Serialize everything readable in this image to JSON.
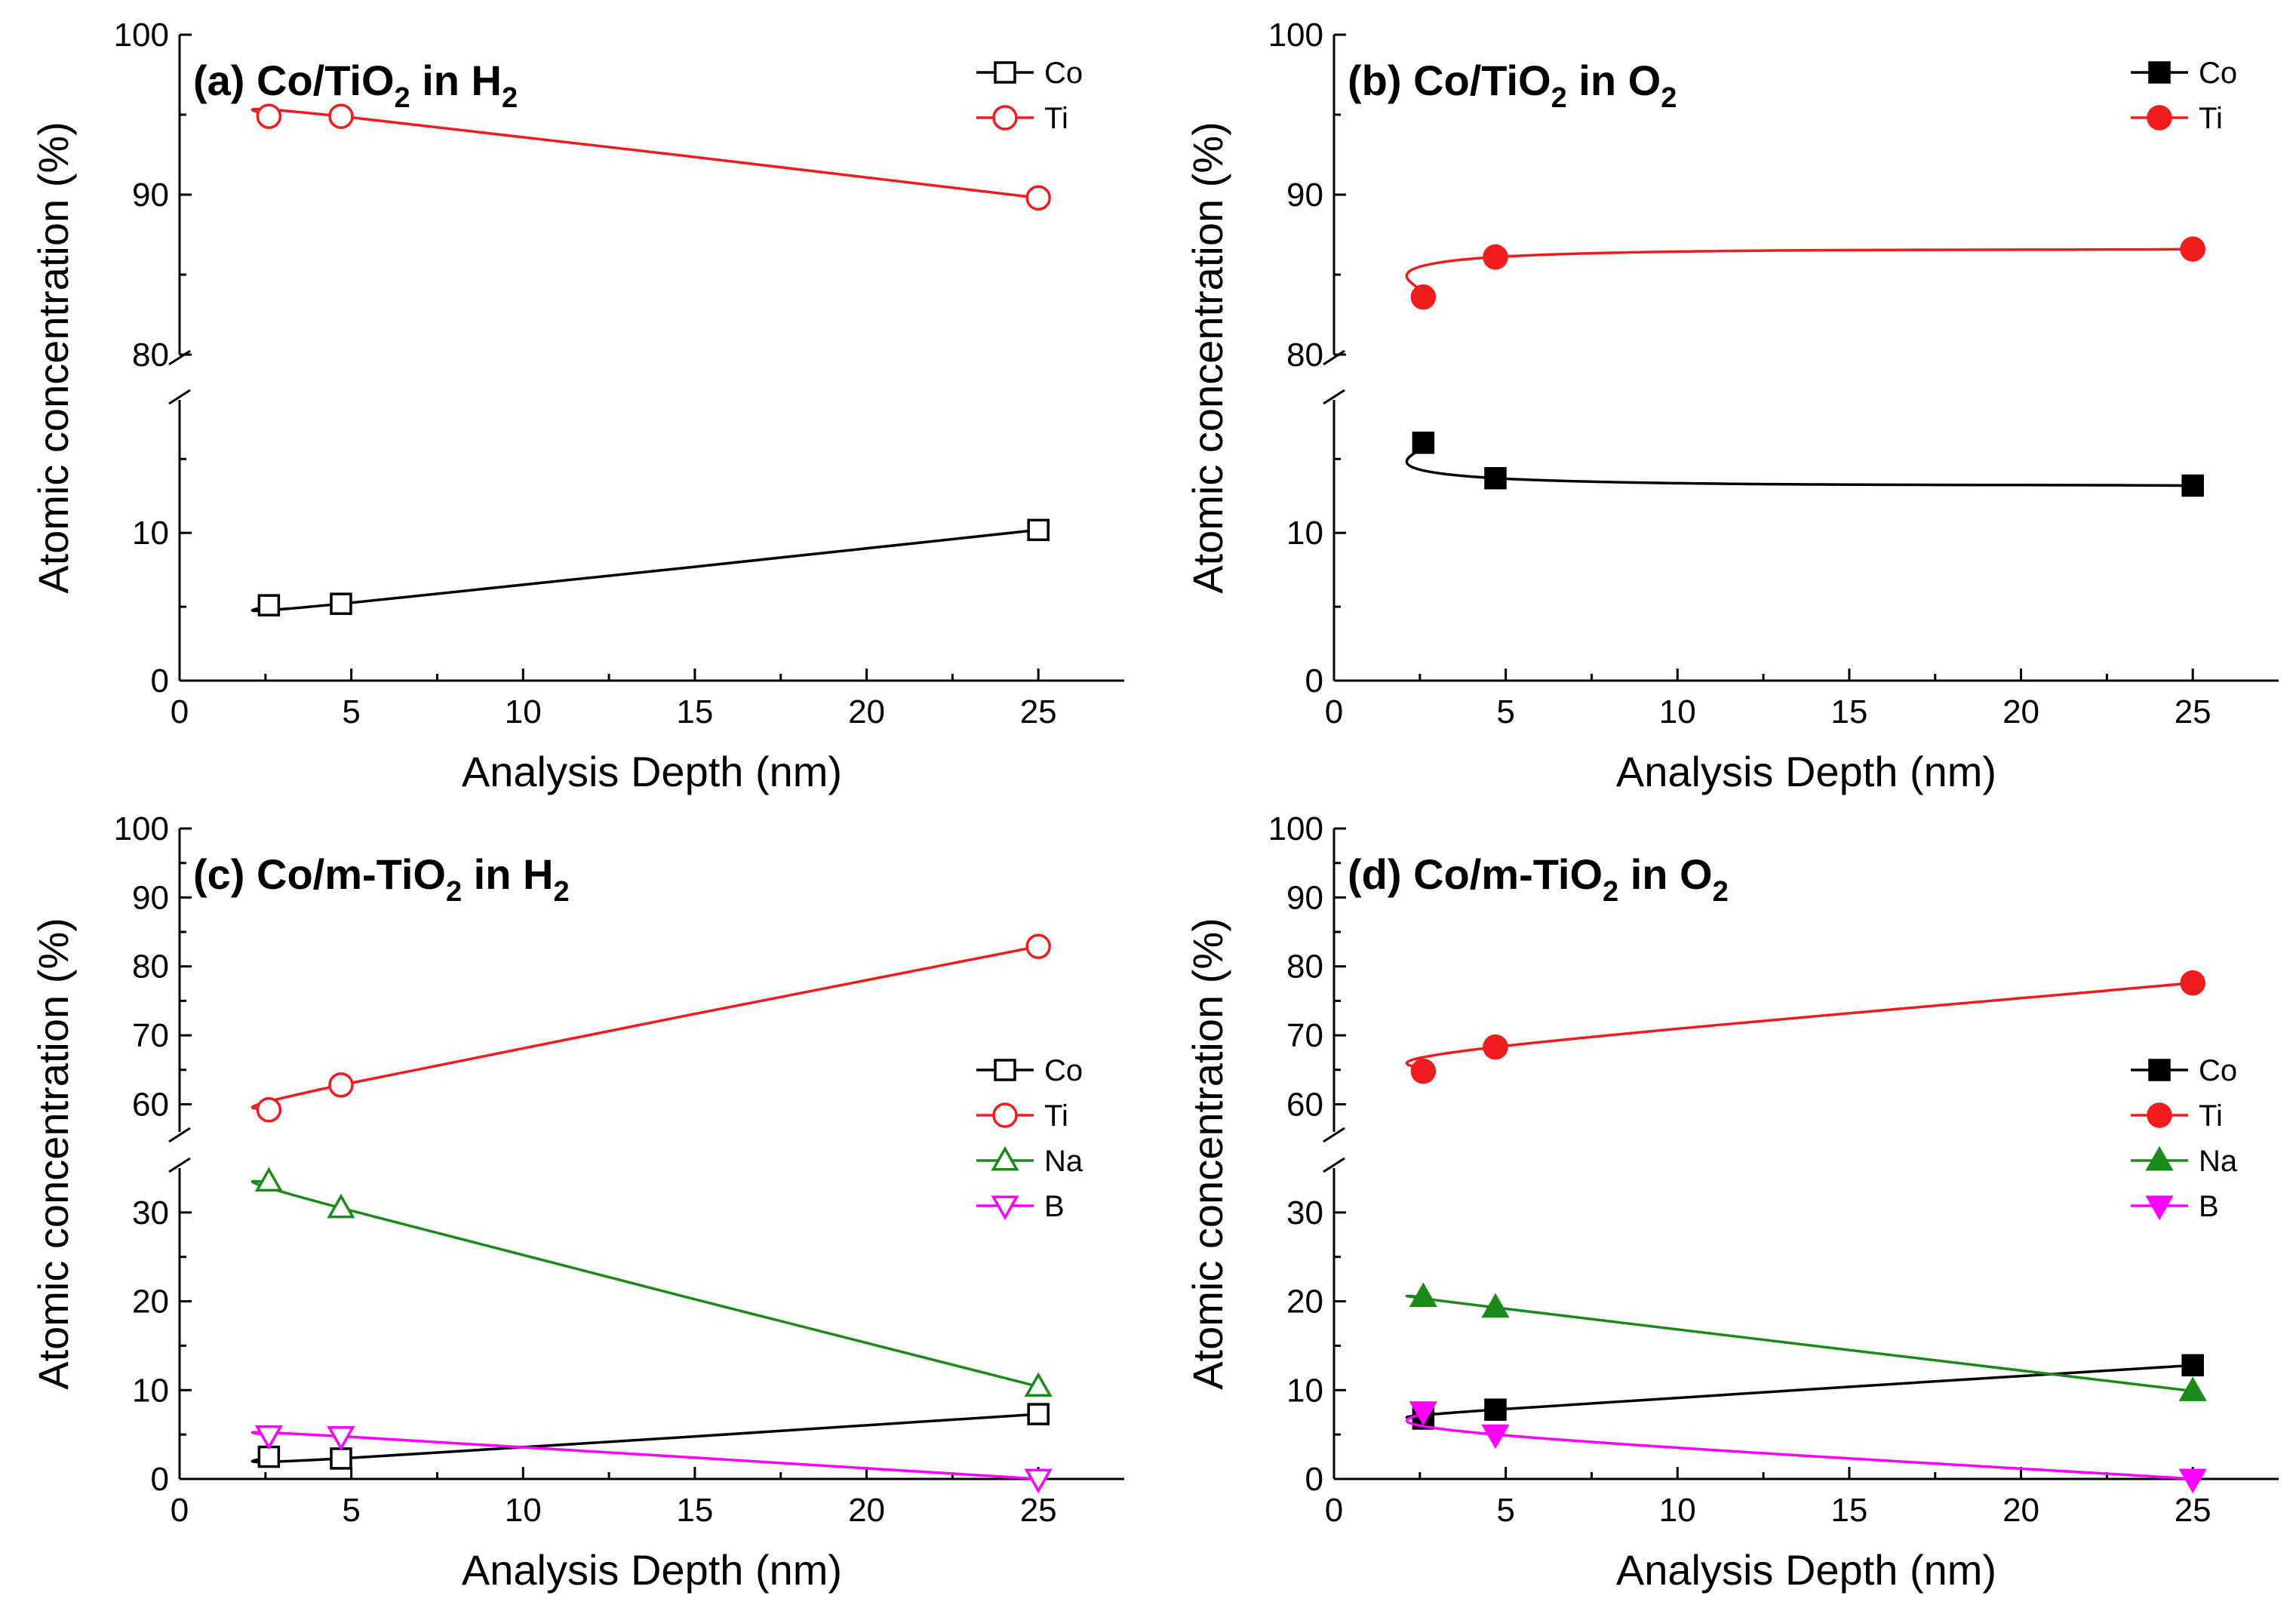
{
  "chart_data": [
    {
      "type": "line",
      "panel_title": "(a) Co/TiO₂ in H₂",
      "title_main": "(a) Co/TiO",
      "title_sub": "2",
      "title_mid": " in H",
      "title_sub2": "2",
      "xlabel": "Analysis Depth (nm)",
      "ylabel": "Atomic concentration (%)",
      "xlim": [
        0,
        27.5
      ],
      "x_ticks": [
        0,
        5,
        10,
        15,
        20,
        25
      ],
      "x_tick_labels": [
        "0",
        "5",
        "10",
        "15",
        "20",
        "25"
      ],
      "y_break": true,
      "y_lower": [
        0,
        19
      ],
      "y_upper": [
        80,
        100
      ],
      "y_ticks_lower": [
        0,
        10
      ],
      "y_tick_labels_lower": [
        "0",
        "10"
      ],
      "y_ticks_upper": [
        80,
        90,
        100
      ],
      "y_tick_labels_upper": [
        "80",
        "90",
        "100"
      ],
      "legend_position": "top-right",
      "series": [
        {
          "name": "Co",
          "color": "#000000",
          "marker": "square",
          "filled": false,
          "x": [
            2.6,
            4.7,
            25.0
          ],
          "values": [
            5.1,
            5.2,
            10.2
          ]
        },
        {
          "name": "Ti",
          "color": "#ee1c1c",
          "marker": "circle",
          "filled": false,
          "x": [
            2.6,
            4.7,
            25.0
          ],
          "values": [
            94.9,
            94.9,
            89.8
          ]
        }
      ]
    },
    {
      "type": "line",
      "panel_title": "(b) Co/TiO₂ in O₂",
      "title_main": "(b) Co/TiO",
      "title_sub": "2",
      "title_mid": " in O",
      "title_sub2": "2",
      "xlabel": "Analysis Depth (nm)",
      "ylabel": "Atomic concentration (%)",
      "xlim": [
        0,
        27.5
      ],
      "x_ticks": [
        0,
        5,
        10,
        15,
        20,
        25
      ],
      "x_tick_labels": [
        "0",
        "5",
        "10",
        "15",
        "20",
        "25"
      ],
      "y_break": true,
      "y_lower": [
        0,
        19
      ],
      "y_upper": [
        80,
        100
      ],
      "y_ticks_lower": [
        0,
        10
      ],
      "y_tick_labels_lower": [
        "0",
        "10"
      ],
      "y_ticks_upper": [
        80,
        90,
        100
      ],
      "y_tick_labels_upper": [
        "80",
        "90",
        "100"
      ],
      "legend_position": "top-right",
      "series": [
        {
          "name": "Co",
          "color": "#000000",
          "marker": "square",
          "filled": true,
          "x": [
            2.6,
            4.7,
            25.0
          ],
          "values": [
            16.1,
            13.7,
            13.2
          ]
        },
        {
          "name": "Ti",
          "color": "#ee1c1c",
          "marker": "circle",
          "filled": true,
          "x": [
            2.6,
            4.7,
            25.0
          ],
          "values": [
            83.6,
            86.1,
            86.6
          ]
        }
      ]
    },
    {
      "type": "line",
      "panel_title": "(c) Co/m-TiO₂ in H₂",
      "title_main": "(c) Co/m-TiO",
      "title_sub": "2",
      "title_mid": " in H",
      "title_sub2": "2",
      "xlabel": "Analysis Depth (nm)",
      "ylabel": "Atomic concentration (%)",
      "xlim": [
        0,
        27.5
      ],
      "x_ticks": [
        0,
        5,
        10,
        15,
        20,
        25
      ],
      "x_tick_labels": [
        "0",
        "5",
        "10",
        "15",
        "20",
        "25"
      ],
      "y_break": true,
      "y_lower": [
        0,
        35
      ],
      "y_upper": [
        56,
        100
      ],
      "y_ticks_lower": [
        0,
        10,
        20,
        30
      ],
      "y_tick_labels_lower": [
        "0",
        "10",
        "20",
        "30"
      ],
      "y_ticks_upper": [
        60,
        70,
        80,
        90,
        100
      ],
      "y_tick_labels_upper": [
        "60",
        "70",
        "80",
        "90",
        "100"
      ],
      "legend_position": "center-right",
      "series": [
        {
          "name": "Co",
          "color": "#000000",
          "marker": "square",
          "filled": false,
          "x": [
            2.6,
            4.7,
            25.0
          ],
          "values": [
            2.5,
            2.3,
            7.3
          ]
        },
        {
          "name": "Ti",
          "color": "#ee1c1c",
          "marker": "circle",
          "filled": false,
          "x": [
            2.6,
            4.7,
            25.0
          ],
          "values": [
            59.2,
            62.8,
            82.9
          ]
        },
        {
          "name": "Na",
          "color": "#1b8a1b",
          "marker": "triangle-up",
          "filled": false,
          "x": [
            2.6,
            4.7,
            25.0
          ],
          "values": [
            33.5,
            30.5,
            10.4
          ]
        },
        {
          "name": "B",
          "color": "#ff00ff",
          "marker": "triangle-down",
          "filled": false,
          "x": [
            2.6,
            4.7,
            25.0
          ],
          "values": [
            4.9,
            4.8,
            0.0
          ]
        }
      ]
    },
    {
      "type": "line",
      "panel_title": "(d) Co/m-TiO₂ in O₂",
      "title_main": "(d) Co/m-TiO",
      "title_sub": "2",
      "title_mid": " in O",
      "title_sub2": "2",
      "xlabel": "Analysis Depth (nm)",
      "ylabel": "Atomic concentration (%)",
      "xlim": [
        0,
        27.5
      ],
      "x_ticks": [
        0,
        5,
        10,
        15,
        20,
        25
      ],
      "x_tick_labels": [
        "0",
        "5",
        "10",
        "15",
        "20",
        "25"
      ],
      "y_break": true,
      "y_lower": [
        0,
        35
      ],
      "y_upper": [
        56,
        100
      ],
      "y_ticks_lower": [
        0,
        10,
        20,
        30
      ],
      "y_tick_labels_lower": [
        "0",
        "10",
        "20",
        "30"
      ],
      "y_ticks_upper": [
        60,
        70,
        80,
        90,
        100
      ],
      "y_tick_labels_upper": [
        "60",
        "70",
        "80",
        "90",
        "100"
      ],
      "legend_position": "center-right",
      "series": [
        {
          "name": "Co",
          "color": "#000000",
          "marker": "square",
          "filled": true,
          "x": [
            2.6,
            4.7,
            25.0
          ],
          "values": [
            6.8,
            7.8,
            12.8
          ]
        },
        {
          "name": "Ti",
          "color": "#ee1c1c",
          "marker": "circle",
          "filled": true,
          "x": [
            2.6,
            4.7,
            25.0
          ],
          "values": [
            64.8,
            68.3,
            77.6
          ]
        },
        {
          "name": "Na",
          "color": "#1b8a1b",
          "marker": "triangle-up",
          "filled": true,
          "x": [
            2.6,
            4.7,
            25.0
          ],
          "values": [
            20.5,
            19.3,
            9.9
          ]
        },
        {
          "name": "B",
          "color": "#ff00ff",
          "marker": "triangle-down",
          "filled": true,
          "x": [
            2.6,
            4.7,
            25.0
          ],
          "values": [
            7.6,
            5.0,
            0.0
          ]
        }
      ]
    }
  ]
}
